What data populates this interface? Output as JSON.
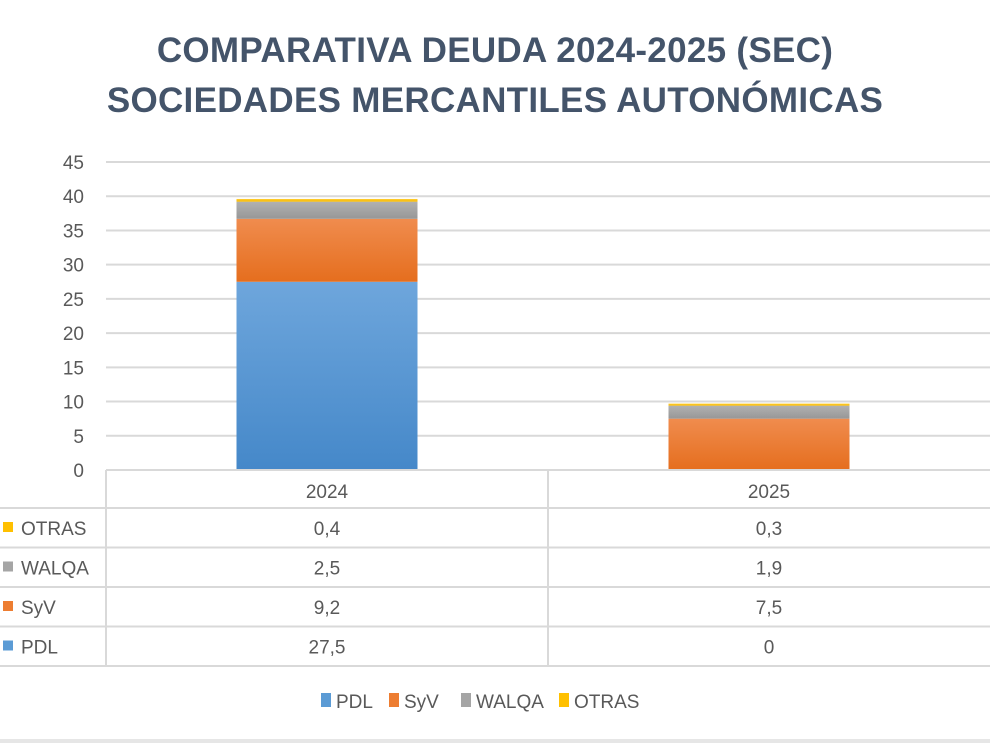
{
  "chart_data": {
    "type": "bar",
    "stacked": true,
    "title": "COMPARATIVA DEUDA 2024-2025 (SEC)",
    "subtitle": "SOCIEDADES MERCANTILES AUTONÓMICAS",
    "categories": [
      "2024",
      "2025"
    ],
    "series": [
      {
        "name": "PDL",
        "values": [
          27.5,
          0
        ],
        "labels": [
          "27,5",
          "0"
        ],
        "color": "#5b9bd5"
      },
      {
        "name": "SyV",
        "values": [
          9.2,
          7.5
        ],
        "labels": [
          "9,2",
          "7,5"
        ],
        "color": "#ed7d31"
      },
      {
        "name": "WALQA",
        "values": [
          2.5,
          1.9
        ],
        "labels": [
          "2,5",
          "1,9"
        ],
        "color": "#a5a5a5"
      },
      {
        "name": "OTRAS",
        "values": [
          0.4,
          0.3
        ],
        "labels": [
          "0,4",
          "0,3"
        ],
        "color": "#ffc000"
      }
    ],
    "ylim": [
      0,
      45
    ],
    "yticks": [
      0,
      5,
      10,
      15,
      20,
      25,
      30,
      35,
      40,
      45
    ],
    "grid": true,
    "data_table": true,
    "legend": "bottom",
    "xlabel": "",
    "ylabel": ""
  }
}
